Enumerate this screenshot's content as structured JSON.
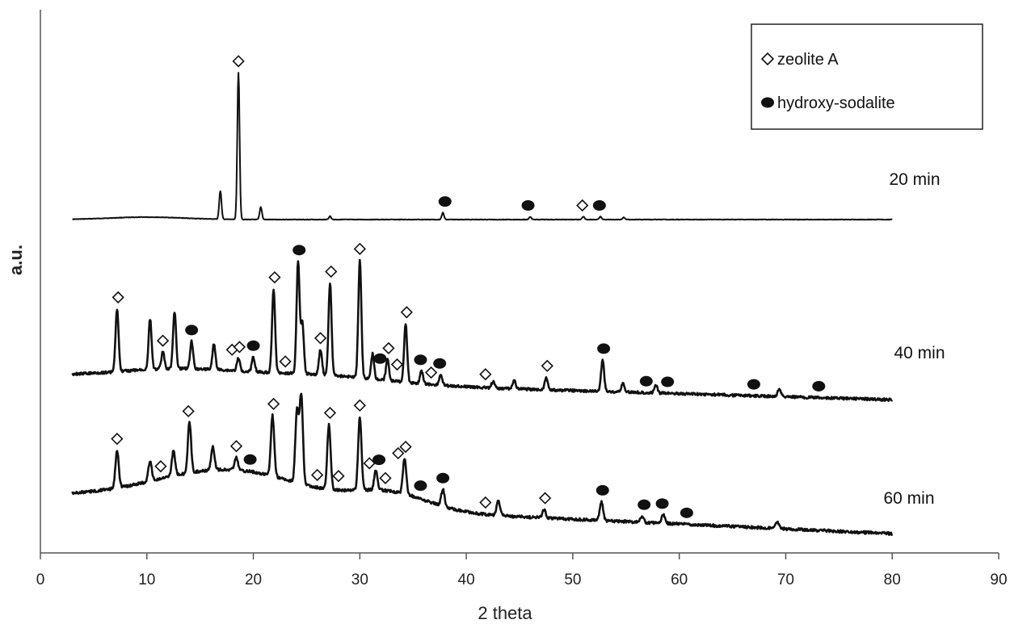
{
  "chart_data": {
    "type": "line",
    "title": "",
    "xlabel": "2 theta",
    "ylabel": "a.u.",
    "xlim": [
      0,
      90
    ],
    "xticks": [
      "0",
      "10",
      "20",
      "30",
      "40",
      "50",
      "60",
      "70",
      "80",
      "90"
    ],
    "y_ticks_shown": false,
    "grid": false,
    "legend_position": "top-right",
    "legend": [
      {
        "label": "zeolite A",
        "marker": "open-diamond"
      },
      {
        "label": "hydroxy-sodalite",
        "marker": "filled-circle"
      }
    ],
    "series": [
      {
        "name": "20 min",
        "baseline": 9.6,
        "peaks": [
          [
            16.9,
            0.5
          ],
          [
            18.6,
            2.6
          ],
          [
            20.7,
            0.22
          ],
          [
            27.2,
            0.06
          ],
          [
            37.8,
            0.12
          ],
          [
            46.0,
            0.05
          ],
          [
            51.0,
            0.05
          ],
          [
            52.6,
            0.05
          ],
          [
            54.8,
            0.04
          ]
        ],
        "zeolite_A": [
          18.6,
          50.9
        ],
        "hydroxy_sodalite": [
          38.0,
          45.8,
          52.5
        ]
      },
      {
        "name": "40 min",
        "peaks": [
          [
            7.2,
            1.5
          ],
          [
            10.3,
            1.2
          ],
          [
            11.5,
            0.4
          ],
          [
            12.6,
            1.35
          ],
          [
            14.2,
            0.65
          ],
          [
            16.3,
            0.6
          ],
          [
            18.6,
            0.3
          ],
          [
            20.0,
            0.35
          ],
          [
            21.9,
            2.0
          ],
          [
            24.2,
            2.65
          ],
          [
            24.6,
            1.2
          ],
          [
            26.3,
            0.6
          ],
          [
            27.2,
            2.2
          ],
          [
            30.0,
            2.8
          ],
          [
            31.2,
            0.6
          ],
          [
            32.6,
            0.5
          ],
          [
            34.3,
            1.4
          ],
          [
            35.8,
            0.3
          ],
          [
            37.6,
            0.25
          ],
          [
            42.5,
            0.15
          ],
          [
            44.5,
            0.2
          ],
          [
            47.5,
            0.3
          ],
          [
            52.8,
            0.75
          ],
          [
            54.7,
            0.2
          ],
          [
            57.8,
            0.2
          ],
          [
            69.4,
            0.2
          ]
        ],
        "zeolite_A": [
          7.3,
          11.5,
          18.0,
          18.7,
          22.0,
          23.0,
          26.3,
          27.3,
          30.0,
          32.7,
          33.5,
          34.4,
          36.7,
          41.8,
          47.6
        ],
        "hydroxy_sodalite": [
          14.2,
          20.0,
          24.3,
          31.9,
          35.7,
          37.5,
          52.9,
          56.9,
          58.9,
          67.0,
          73.1
        ]
      },
      {
        "name": "60 min",
        "peaks": [
          [
            7.2,
            0.9
          ],
          [
            10.3,
            0.5
          ],
          [
            12.5,
            0.6
          ],
          [
            14.0,
            1.2
          ],
          [
            16.2,
            0.55
          ],
          [
            18.4,
            0.3
          ],
          [
            21.8,
            1.45
          ],
          [
            24.1,
            1.7
          ],
          [
            24.5,
            2.1
          ],
          [
            27.1,
            1.55
          ],
          [
            30.0,
            1.75
          ],
          [
            31.5,
            0.45
          ],
          [
            34.2,
            0.85
          ],
          [
            37.8,
            0.4
          ],
          [
            43.0,
            0.35
          ],
          [
            47.3,
            0.2
          ],
          [
            52.7,
            0.45
          ],
          [
            56.5,
            0.15
          ],
          [
            58.5,
            0.2
          ],
          [
            69.2,
            0.15
          ]
        ],
        "zeolite_A": [
          7.2,
          11.3,
          13.9,
          18.4,
          21.9,
          26.0,
          27.2,
          28.0,
          30.0,
          30.9,
          32.4,
          33.6,
          34.3,
          41.8,
          47.4
        ],
        "hydroxy_sodalite": [
          19.7,
          31.8,
          35.7,
          37.8,
          52.8,
          56.7,
          58.4,
          60.7
        ]
      }
    ]
  }
}
